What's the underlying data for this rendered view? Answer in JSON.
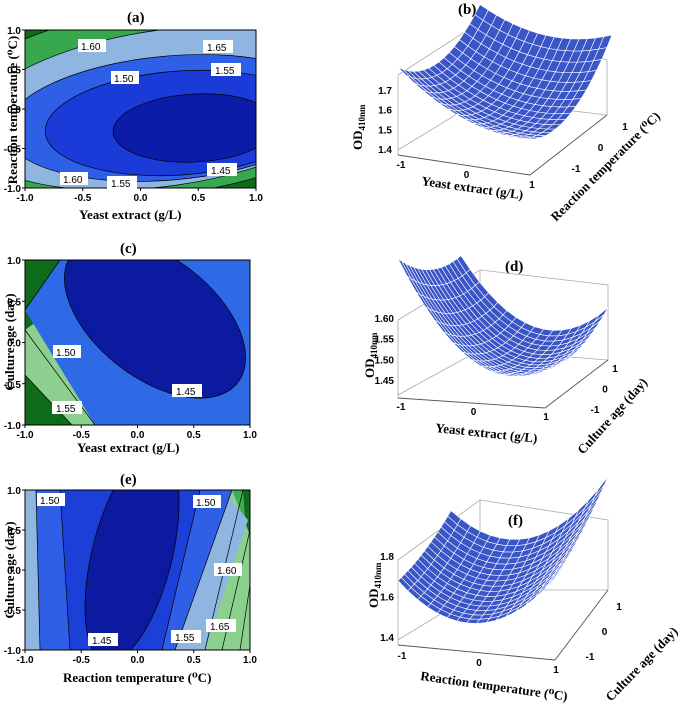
{
  "chart_data": [
    {
      "panel": "(a)",
      "type": "contour",
      "xlabel": "Yeast extract (g/L)",
      "ylabel": "Reaction temperature (⁰C)",
      "xlim": [
        -1.0,
        1.0
      ],
      "ylim": [
        -1.0,
        1.0
      ],
      "xticks": [
        "-1.0",
        "-0.5",
        "0.0",
        "0.5",
        "1.0"
      ],
      "yticks": [
        "-1.0",
        "-0.5",
        "0.0",
        "0.5",
        "1.0"
      ],
      "levels": [
        1.45,
        1.5,
        1.55,
        1.6,
        1.65
      ],
      "contour_labels": [
        "1.60",
        "1.65",
        "1.50",
        "1.55",
        "1.45",
        "1.60",
        "1.55"
      ],
      "minimum": {
        "x": 0.6,
        "y": -0.15
      }
    },
    {
      "panel": "(b)",
      "type": "surface3d",
      "zlabel": "OD410nm",
      "zlabel_main": "OD",
      "zlabel_sub": "410nm",
      "xlabel": "Yeast extract (g/L)",
      "ylabel": "Reaction temperature (⁰C)",
      "xticks": [
        "-1",
        "0",
        "1"
      ],
      "yticks": [
        "-1",
        "0",
        "1"
      ],
      "zticks": [
        "1.4",
        "1.5",
        "1.6",
        "1.7"
      ],
      "zlim": [
        1.38,
        1.78
      ]
    },
    {
      "panel": "(c)",
      "type": "contour",
      "xlabel": "Yeast extract (g/L)",
      "ylabel": "Culture age (day)",
      "xlim": [
        -1.0,
        1.0
      ],
      "ylim": [
        -1.0,
        1.0
      ],
      "xticks": [
        "-1.0",
        "-0.5",
        "0.0",
        "0.5",
        "1.0"
      ],
      "yticks": [
        "-1.0",
        "-0.5",
        "0.0",
        "0.5",
        "1.0"
      ],
      "levels": [
        1.45,
        1.5,
        1.55
      ],
      "contour_labels": [
        "1.50",
        "1.45",
        "1.55"
      ]
    },
    {
      "panel": "(d)",
      "type": "surface3d",
      "zlabel": "OD410nm",
      "zlabel_main": "OD",
      "zlabel_sub": "410nm",
      "xlabel": "Yeast extract (g/L)",
      "ylabel": "Culture age (day)",
      "xticks": [
        "-1",
        "0",
        "1"
      ],
      "yticks": [
        "-1",
        "0",
        "1"
      ],
      "zticks": [
        "1.45",
        "1.50",
        "1.55",
        "1.60"
      ],
      "zlim": [
        1.42,
        1.62
      ]
    },
    {
      "panel": "(e)",
      "type": "contour",
      "xlabel": "Reaction temperature (⁰C)",
      "ylabel": "Culture age (day)",
      "xlim": [
        -1.0,
        1.0
      ],
      "ylim": [
        -1.0,
        1.0
      ],
      "xticks": [
        "-1.0",
        "-0.5",
        "0.0",
        "0.5",
        "1.0"
      ],
      "yticks": [
        "-1.0",
        "-0.5",
        "0.0",
        "0.5",
        "1.0"
      ],
      "levels": [
        1.45,
        1.5,
        1.55,
        1.6,
        1.65
      ],
      "contour_labels": [
        "1.50",
        "1.50",
        "1.60",
        "1.65",
        "1.55",
        "1.45"
      ]
    },
    {
      "panel": "(f)",
      "type": "surface3d",
      "zlabel": "OD410nm",
      "zlabel_main": "OD",
      "zlabel_sub": "410nm",
      "xlabel": "Reaction temperature (⁰C)",
      "ylabel": "Culture age (day)",
      "xticks": [
        "-1",
        "0",
        "1"
      ],
      "yticks": [
        "-1",
        "0",
        "1"
      ],
      "zticks": [
        "1.4",
        "1.6",
        "1.8"
      ],
      "zlim": [
        1.38,
        1.85
      ]
    }
  ]
}
